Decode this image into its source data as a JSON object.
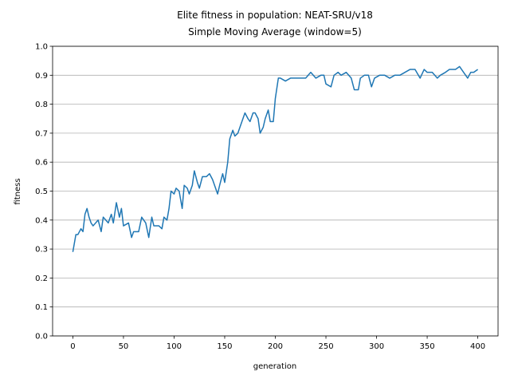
{
  "chart_data": {
    "type": "line",
    "title": "Elite fitness in population: NEAT-SRU/v18",
    "subtitle": "Simple Moving Average (window=5)",
    "x_label": "generation",
    "y_label": "fitness",
    "xlim": [
      -20,
      420
    ],
    "xticks": [
      0,
      50,
      100,
      150,
      200,
      250,
      300,
      350,
      400
    ],
    "ylim": [
      0,
      1
    ],
    "yticks": [
      {
        "value": 0,
        "label": "0.0"
      },
      0.1,
      0.2,
      0.3,
      0.4,
      0.5,
      0.6,
      0.7,
      0.8,
      0.9,
      {
        "value": 1,
        "label": "1.0"
      }
    ],
    "grid": "y",
    "x": [
      0,
      3,
      5,
      8,
      10,
      12,
      14,
      16,
      18,
      20,
      25,
      28,
      30,
      35,
      38,
      40,
      43,
      46,
      48,
      50,
      55,
      58,
      60,
      65,
      68,
      72,
      75,
      78,
      80,
      85,
      88,
      90,
      93,
      95,
      97,
      100,
      102,
      105,
      108,
      110,
      113,
      115,
      118,
      120,
      123,
      125,
      128,
      132,
      135,
      138,
      140,
      143,
      145,
      148,
      150,
      153,
      155,
      158,
      160,
      163,
      165,
      168,
      170,
      173,
      175,
      178,
      180,
      183,
      185,
      188,
      190,
      193,
      195,
      198,
      200,
      203,
      205,
      210,
      215,
      220,
      225,
      230,
      235,
      240,
      245,
      248,
      250,
      255,
      258,
      262,
      265,
      270,
      275,
      278,
      282,
      284,
      288,
      292,
      295,
      298,
      303,
      308,
      313,
      318,
      323,
      328,
      333,
      338,
      343,
      347,
      350,
      355,
      360,
      363,
      368,
      372,
      378,
      382,
      386,
      390,
      393,
      396,
      400
    ],
    "series": [
      {
        "color": "#1f77b4",
        "values": [
          0.29,
          0.35,
          0.35,
          0.37,
          0.36,
          0.42,
          0.44,
          0.41,
          0.39,
          0.38,
          0.4,
          0.36,
          0.41,
          0.39,
          0.42,
          0.39,
          0.46,
          0.41,
          0.44,
          0.38,
          0.39,
          0.34,
          0.36,
          0.36,
          0.41,
          0.39,
          0.34,
          0.41,
          0.38,
          0.38,
          0.37,
          0.41,
          0.4,
          0.44,
          0.5,
          0.49,
          0.51,
          0.5,
          0.44,
          0.52,
          0.51,
          0.49,
          0.52,
          0.57,
          0.53,
          0.51,
          0.55,
          0.55,
          0.56,
          0.54,
          0.52,
          0.49,
          0.52,
          0.56,
          0.53,
          0.6,
          0.68,
          0.71,
          0.69,
          0.7,
          0.72,
          0.75,
          0.77,
          0.75,
          0.74,
          0.77,
          0.77,
          0.75,
          0.7,
          0.72,
          0.75,
          0.78,
          0.74,
          0.74,
          0.82,
          0.89,
          0.89,
          0.88,
          0.89,
          0.89,
          0.89,
          0.89,
          0.91,
          0.89,
          0.9,
          0.9,
          0.87,
          0.86,
          0.9,
          0.91,
          0.9,
          0.91,
          0.89,
          0.85,
          0.85,
          0.89,
          0.9,
          0.9,
          0.86,
          0.89,
          0.9,
          0.9,
          0.89,
          0.9,
          0.9,
          0.91,
          0.92,
          0.92,
          0.89,
          0.92,
          0.91,
          0.91,
          0.89,
          0.9,
          0.91,
          0.92,
          0.92,
          0.93,
          0.91,
          0.89,
          0.91,
          0.91,
          0.92
        ]
      }
    ]
  }
}
